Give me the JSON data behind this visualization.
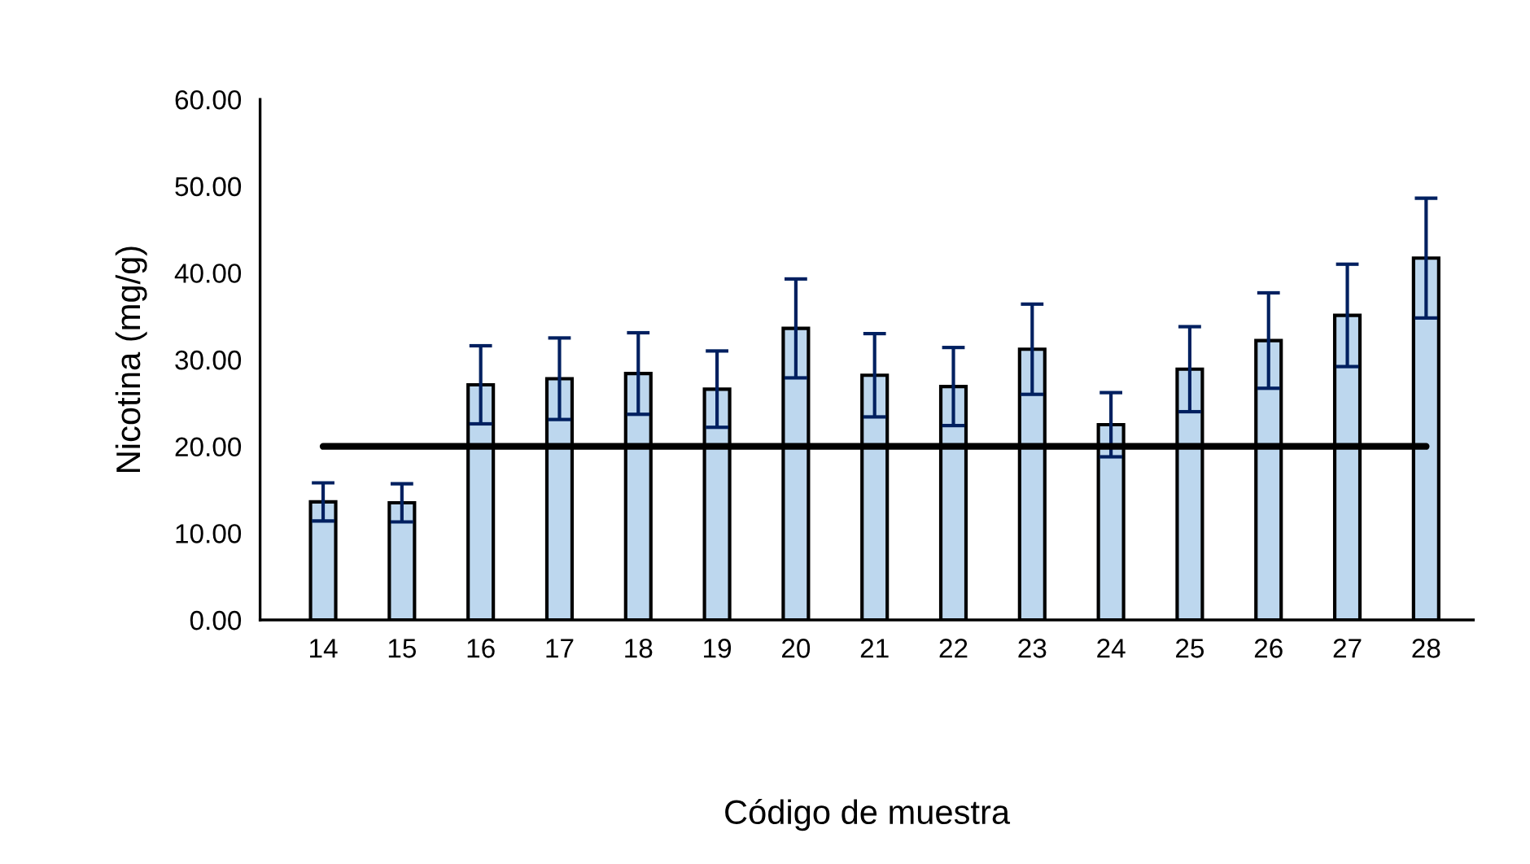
{
  "chart_data": {
    "type": "bar",
    "xlabel": "Código de muestra",
    "ylabel": "Nicotina (mg/g)",
    "categories": [
      "14",
      "15",
      "16",
      "17",
      "18",
      "19",
      "20",
      "21",
      "22",
      "23",
      "24",
      "25",
      "26",
      "27",
      "28"
    ],
    "values": [
      13.6,
      13.5,
      27.1,
      27.8,
      28.4,
      26.6,
      33.6,
      28.2,
      26.9,
      31.2,
      22.5,
      28.9,
      32.2,
      35.1,
      41.7
    ],
    "errors": [
      2.2,
      2.2,
      4.5,
      4.7,
      4.7,
      4.4,
      5.7,
      4.8,
      4.5,
      5.2,
      3.7,
      4.9,
      5.5,
      5.9,
      6.9
    ],
    "color": "#bdd7ee",
    "ylim": [
      0,
      60
    ],
    "yticks": [
      {
        "value": 0,
        "label": "0.00"
      },
      {
        "value": 10,
        "label": "10.00"
      },
      {
        "value": 20,
        "label": "20.00"
      },
      {
        "value": 30,
        "label": "30.00"
      },
      {
        "value": 40,
        "label": "40.00"
      },
      {
        "value": 50,
        "label": "50.00"
      },
      {
        "value": 60,
        "label": "60.00"
      }
    ],
    "ref_lines": [
      {
        "axis": "y",
        "value": 20,
        "label": null,
        "color": "#000000",
        "line_style": "solid"
      }
    ],
    "grid": false,
    "legend": false
  }
}
